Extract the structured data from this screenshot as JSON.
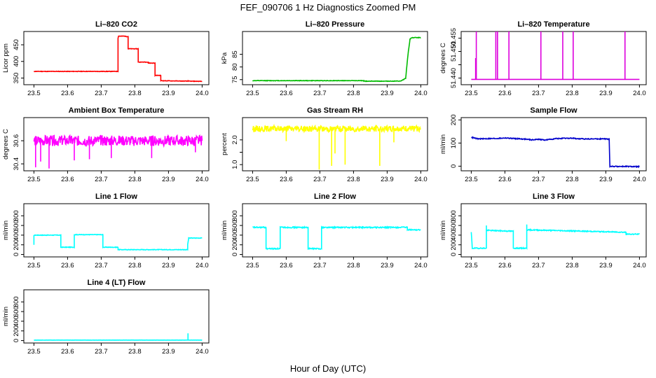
{
  "figure": {
    "title": "FEF_090706  1 Hz Diagnostics Zoomed PM",
    "xlabel": "Hour of Day (UTC)"
  },
  "chart_data": [
    {
      "type": "line",
      "title": "Li–820 CO2",
      "ylabel": "Licor ppm",
      "color": "#ff0000",
      "xlim": [
        23.47,
        24.02
      ],
      "ylim": [
        330,
        490
      ],
      "xticks": [
        "23.5",
        "23.6",
        "23.7",
        "23.8",
        "23.9",
        "24.0"
      ],
      "yticks": [
        350,
        400,
        450
      ],
      "noise": 0.7,
      "seed": 11,
      "spikes": [
        [
          23.958,
          344
        ]
      ],
      "series": [
        {
          "x": [
            23.5,
            23.75,
            23.75,
            23.752,
            23.752,
            23.77,
            23.775,
            23.78,
            23.78,
            23.81,
            23.81,
            23.84,
            23.84,
            23.86,
            23.86,
            23.877,
            23.877,
            24.0
          ],
          "y": [
            370,
            370,
            470,
            478,
            476,
            476,
            475,
            475,
            438,
            438,
            398,
            398,
            395,
            395,
            358,
            358,
            342,
            340
          ]
        }
      ]
    },
    {
      "type": "line",
      "title": "Li–820 Pressure",
      "ylabel": "kPa",
      "color": "#00bb00",
      "xlim": [
        23.47,
        24.02
      ],
      "ylim": [
        73,
        94
      ],
      "xticks": [
        "23.5",
        "23.6",
        "23.7",
        "23.8",
        "23.9",
        "24.0"
      ],
      "yticks": [
        75,
        80,
        85
      ],
      "noise": 0.1,
      "seed": 12,
      "spikes": [],
      "series": [
        {
          "x": [
            23.5,
            23.83,
            23.83,
            23.93,
            23.94,
            23.955,
            23.962,
            23.968,
            23.972,
            23.98,
            24.0
          ],
          "y": [
            74.6,
            74.6,
            74.4,
            74.4,
            74.4,
            75.5,
            85,
            91,
            91.5,
            91.6,
            91.6
          ]
        }
      ]
    },
    {
      "type": "line",
      "title": "Li–820 Temperature",
      "ylabel": "degrees C",
      "color": "#dd00dd",
      "xlim": [
        23.47,
        24.02
      ],
      "ylim": [
        51.4375,
        51.4575
      ],
      "xticks": [
        "23.5",
        "23.6",
        "23.7",
        "23.8",
        "23.9",
        "24.0"
      ],
      "yticks": [
        51.44,
        51.445,
        51.45,
        51.455
      ],
      "yticklabels": [
        "51.440",
        "",
        "51.450",
        "51.455"
      ],
      "noise": 0,
      "seed": 13,
      "spikes": [
        [
          23.513,
          51.4475
        ],
        [
          23.515,
          51.4575
        ],
        [
          23.573,
          51.4575
        ],
        [
          23.578,
          51.4575
        ],
        [
          23.612,
          51.4575
        ],
        [
          23.707,
          51.4575
        ],
        [
          23.772,
          51.4575
        ],
        [
          23.803,
          51.4575
        ],
        [
          23.957,
          51.4575
        ]
      ],
      "series": [
        {
          "x": [
            23.5,
            24.0
          ],
          "y": [
            51.4395,
            51.4395
          ]
        }
      ]
    },
    {
      "type": "line",
      "title": "Ambient Box Temperature",
      "ylabel": "degrees C",
      "color": "#ff00ff",
      "xlim": [
        23.47,
        24.02
      ],
      "ylim": [
        30.34,
        30.8
      ],
      "xticks": [
        "23.5",
        "23.6",
        "23.7",
        "23.8",
        "23.9",
        "24.0"
      ],
      "yticks": [
        30.4,
        30.6
      ],
      "noise": 0.045,
      "seed": 14,
      "spikes": [
        [
          23.505,
          30.37
        ],
        [
          23.52,
          30.42
        ],
        [
          23.545,
          30.36
        ],
        [
          23.62,
          30.43
        ],
        [
          23.665,
          30.44
        ],
        [
          23.73,
          30.45
        ],
        [
          23.85,
          30.45
        ],
        [
          23.98,
          30.5
        ]
      ],
      "series": [
        {
          "x": [
            23.5,
            24.0
          ],
          "y": [
            30.6,
            30.6
          ]
        }
      ]
    },
    {
      "type": "line",
      "title": "Gas Stream RH",
      "ylabel": "percent",
      "color": "#ffff00",
      "xlim": [
        23.47,
        24.02
      ],
      "ylim": [
        0.75,
        2.9
      ],
      "xticks": [
        "23.5",
        "23.6",
        "23.7",
        "23.8",
        "23.9",
        "24.0"
      ],
      "yticks": [
        1.0,
        1.5,
        2.0
      ],
      "yticklabels": [
        "1.0",
        "",
        "2.0"
      ],
      "noise": 0.12,
      "seed": 15,
      "spikes": [
        [
          23.698,
          0.8
        ],
        [
          23.735,
          0.95
        ],
        [
          23.745,
          1.45
        ],
        [
          23.775,
          1.0
        ],
        [
          23.878,
          0.95
        ],
        [
          23.92,
          1.9
        ],
        [
          23.6,
          1.95
        ]
      ],
      "series": [
        {
          "x": [
            23.5,
            24.0
          ],
          "y": [
            2.45,
            2.45
          ]
        }
      ]
    },
    {
      "type": "line",
      "title": "Sample Flow",
      "ylabel": "ml/min",
      "color": "#0000cc",
      "xlim": [
        23.47,
        24.02
      ],
      "ylim": [
        -20,
        210
      ],
      "xticks": [
        "23.5",
        "23.6",
        "23.7",
        "23.8",
        "23.9",
        "24.0"
      ],
      "yticks": [
        0,
        100,
        200
      ],
      "noise": 2,
      "seed": 16,
      "spikes": [],
      "series": [
        {
          "x": [
            23.5,
            23.52,
            23.58,
            23.6,
            23.66,
            23.68,
            23.7,
            23.72,
            23.75,
            23.8,
            23.82,
            23.9,
            23.91,
            23.912,
            23.922,
            23.94,
            24.0
          ],
          "y": [
            125,
            118,
            120,
            122,
            117,
            114,
            116,
            113,
            119,
            121,
            118,
            118,
            116,
            -1,
            -1,
            -1,
            -2
          ]
        }
      ]
    },
    {
      "type": "line",
      "title": "Line 1 Flow",
      "ylabel": "ml/min",
      "color": "#00ffff",
      "xlim": [
        23.47,
        24.02
      ],
      "ylim": [
        -50,
        1050
      ],
      "xticks": [
        "23.5",
        "23.6",
        "23.7",
        "23.8",
        "23.9",
        "24.0"
      ],
      "yticks": [
        0,
        200,
        400,
        600,
        800
      ],
      "noise": 6,
      "seed": 17,
      "spikes": [
        [
          23.5,
          200
        ]
      ],
      "series": [
        {
          "x": [
            23.5,
            23.58,
            23.58,
            23.62,
            23.62,
            23.705,
            23.705,
            23.75,
            23.75,
            23.957,
            23.957,
            23.96,
            23.96,
            24.0
          ],
          "y": [
            400,
            400,
            150,
            150,
            410,
            410,
            150,
            150,
            100,
            100,
            200,
            330,
            340,
            340
          ]
        }
      ]
    },
    {
      "type": "line",
      "title": "Line 2 Flow",
      "ylabel": "ml/min",
      "color": "#00ffff",
      "xlim": [
        23.47,
        24.02
      ],
      "ylim": [
        -50,
        1050
      ],
      "xticks": [
        "23.5",
        "23.6",
        "23.7",
        "23.8",
        "23.9",
        "24.0"
      ],
      "yticks": [
        0,
        200,
        400,
        600,
        800
      ],
      "noise": 12,
      "seed": 18,
      "spikes": [],
      "series": [
        {
          "x": [
            23.5,
            23.54,
            23.54,
            23.582,
            23.582,
            23.665,
            23.665,
            23.705,
            23.705,
            23.96,
            23.96,
            24.0
          ],
          "y": [
            560,
            560,
            120,
            120,
            560,
            560,
            120,
            120,
            560,
            560,
            510,
            510
          ]
        }
      ]
    },
    {
      "type": "line",
      "title": "Line 3 Flow",
      "ylabel": "ml/min",
      "color": "#00ffff",
      "xlim": [
        23.47,
        24.02
      ],
      "ylim": [
        -50,
        1050
      ],
      "xticks": [
        "23.5",
        "23.6",
        "23.7",
        "23.8",
        "23.9",
        "24.0"
      ],
      "yticks": [
        0,
        200,
        400,
        600,
        800
      ],
      "noise": 10,
      "seed": 19,
      "spikes": [
        [
          23.5,
          460
        ],
        [
          23.545,
          600
        ],
        [
          23.665,
          620
        ]
      ],
      "series": [
        {
          "x": [
            23.5,
            23.503,
            23.503,
            23.545,
            23.545,
            23.625,
            23.625,
            23.665,
            23.665,
            23.96,
            23.96,
            24.0
          ],
          "y": [
            460,
            130,
            130,
            130,
            500,
            480,
            130,
            130,
            510,
            460,
            420,
            420
          ]
        }
      ]
    },
    {
      "type": "line",
      "title": "Line 4 (LT) Flow",
      "ylabel": "ml/min",
      "color": "#00ffff",
      "xlim": [
        23.47,
        24.02
      ],
      "ylim": [
        -50,
        1050
      ],
      "xticks": [
        "23.5",
        "23.6",
        "23.7",
        "23.8",
        "23.9",
        "24.0"
      ],
      "yticks": [
        0,
        200,
        400,
        600,
        800
      ],
      "noise": 1.5,
      "seed": 20,
      "spikes": [
        [
          23.958,
          150
        ]
      ],
      "series": [
        {
          "x": [
            23.5,
            24.0
          ],
          "y": [
            10,
            10
          ]
        }
      ]
    }
  ]
}
